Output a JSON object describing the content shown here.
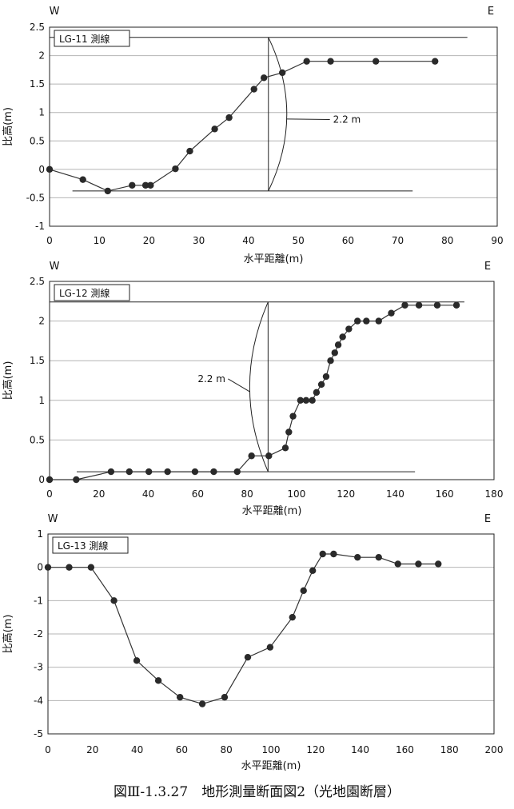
{
  "caption": "図Ⅲ-1.3.27　地形測量断面図2（光地園断層）",
  "chart_data": [
    {
      "type": "scatter",
      "title": "LG-11 測線",
      "xlabel": "水平距離(m)",
      "ylabel": "比高(m)",
      "left_label": "W",
      "right_label": "E",
      "xlim": [
        0,
        90
      ],
      "ylim": [
        -1,
        2.5
      ],
      "xticks": [
        0,
        10,
        20,
        30,
        40,
        50,
        60,
        70,
        80,
        90
      ],
      "xtick_labels": [
        "0",
        "10",
        "20",
        "30",
        "40",
        "50",
        "60",
        "70",
        "80",
        "90"
      ],
      "yticks": [
        -1,
        -0.5,
        0,
        0.5,
        1,
        1.5,
        2,
        2.5
      ],
      "ytick_labels": [
        "-1",
        "-0.5",
        "0",
        "0.5",
        "1",
        "1.5",
        "2",
        "2.5"
      ],
      "grid": true,
      "x": [
        0,
        6.7,
        11.7,
        16.6,
        19.3,
        20.3,
        25.3,
        28.2,
        33.2,
        36.1,
        41.1,
        43.1,
        46.8,
        51.7,
        56.5,
        65.6,
        77.5
      ],
      "y": [
        0,
        -0.18,
        -0.38,
        -0.28,
        -0.28,
        -0.28,
        0.01,
        0.32,
        0.71,
        0.91,
        1.41,
        1.61,
        1.7,
        1.9,
        1.9,
        1.9,
        1.9
      ],
      "annotation": {
        "text": "2.2 m",
        "x_text": 57,
        "y_text": 0.82,
        "vline_x": 44,
        "top_y": 2.32,
        "bottom_y": -0.38,
        "top_line": [
          0,
          84
        ],
        "bottom_line": [
          4.6,
          73
        ]
      }
    },
    {
      "type": "scatter",
      "title": "LG-12 測線",
      "xlabel": "水平距離(m)",
      "ylabel": "比高(m)",
      "left_label": "W",
      "right_label": "E",
      "xlim": [
        0,
        180
      ],
      "ylim": [
        0,
        2.5
      ],
      "xticks": [
        0,
        20,
        40,
        60,
        80,
        100,
        120,
        140,
        160,
        180
      ],
      "xtick_labels": [
        "0",
        "20",
        "40",
        "60",
        "80",
        "100",
        "120",
        "140",
        "160",
        "180"
      ],
      "yticks": [
        0,
        0.5,
        1,
        1.5,
        2,
        2.5
      ],
      "ytick_labels": [
        "0",
        "0.5",
        "1",
        "1.5",
        "2",
        "2.5"
      ],
      "grid": true,
      "x": [
        0,
        10.8,
        24.9,
        32.3,
        40.2,
        47.8,
        58.9,
        66.5,
        76,
        81.8,
        88.8,
        95.5,
        96.9,
        98.6,
        101.6,
        103.9,
        106.4,
        108.1,
        110.1,
        112,
        113.8,
        115.5,
        116.9,
        118.7,
        121.2,
        124.7,
        128.3,
        133.3,
        138.4,
        143.9,
        149.6,
        157,
        164.8
      ],
      "y": [
        0,
        0,
        0.1,
        0.1,
        0.1,
        0.1,
        0.1,
        0.1,
        0.1,
        0.3,
        0.3,
        0.4,
        0.6,
        0.8,
        1.0,
        1.0,
        1.0,
        1.1,
        1.2,
        1.3,
        1.5,
        1.6,
        1.7,
        1.8,
        1.9,
        2.0,
        2.0,
        2.0,
        2.1,
        2.2,
        2.2,
        2.2,
        2.2
      ],
      "annotation": {
        "text": "2.2 m",
        "x_text": 60,
        "y_text": 1.23,
        "vline_x": 88.5,
        "top_y": 2.24,
        "bottom_y": 0.1,
        "top_line": [
          0,
          168
        ],
        "bottom_line": [
          11,
          148
        ]
      }
    },
    {
      "type": "scatter",
      "title": "LG-13 測線",
      "xlabel": "水平距離(m)",
      "ylabel": "比高(m)",
      "left_label": "W",
      "right_label": "E",
      "xlim": [
        0,
        200
      ],
      "ylim": [
        -5,
        1
      ],
      "xticks": [
        0,
        20,
        40,
        60,
        80,
        100,
        120,
        140,
        160,
        180,
        200
      ],
      "xtick_labels": [
        "0",
        "20",
        "40",
        "60",
        "80",
        "100",
        "120",
        "140",
        "160",
        "180",
        "200"
      ],
      "yticks": [
        -5,
        -4,
        -3,
        -2,
        -1,
        0,
        1
      ],
      "ytick_labels": [
        "-5",
        "-4",
        "-3",
        "-2",
        "-1",
        "0",
        "1"
      ],
      "grid": true,
      "x": [
        0,
        9.5,
        19.3,
        29.6,
        39.8,
        49.5,
        59.2,
        69.2,
        79.2,
        89.6,
        99.6,
        109.6,
        114.6,
        118.7,
        123.2,
        128.1,
        138.8,
        148.3,
        156.9,
        166.1,
        175
      ],
      "y": [
        0,
        0,
        0,
        -1,
        -2.8,
        -3.4,
        -3.9,
        -4.1,
        -3.9,
        -2.7,
        -2.4,
        -1.5,
        -0.7,
        -0.1,
        0.4,
        0.4,
        0.3,
        0.3,
        0.1,
        0.1,
        0.1
      ]
    }
  ]
}
